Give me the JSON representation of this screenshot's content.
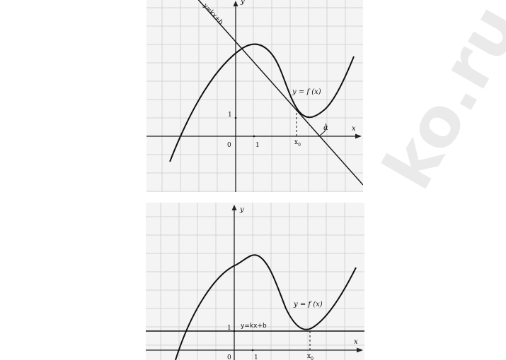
{
  "watermark": "ko.ru",
  "top_graph": {
    "axis_y_label": "y",
    "axis_x_label": "x",
    "origin_label": "0",
    "x_tick_label": "1",
    "y_tick_label": "1",
    "x0_label": "x",
    "x0_subscript": "0",
    "tangent_label": "y=kx+b",
    "function_label": "y = f (x)",
    "angle_label": "α"
  },
  "bottom_graph": {
    "axis_y_label": "y",
    "axis_x_label": "x",
    "origin_label": "0",
    "x_tick_label": "1",
    "y_tick_label": "1",
    "x0_label": "x",
    "x0_subscript": "0",
    "tangent_label": "y=kx+b",
    "function_label": "y = f (x)"
  }
}
